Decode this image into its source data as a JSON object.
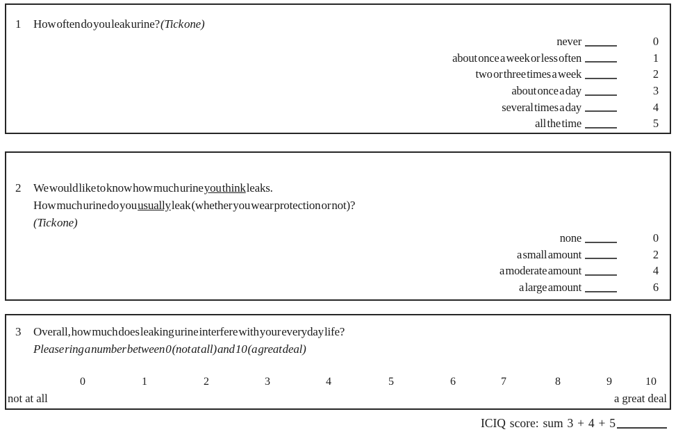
{
  "form": {
    "questions": [
      {
        "number": "1",
        "text": "How often do you leak urine?",
        "instruction": "(Tick one)",
        "options": [
          {
            "label": "never",
            "score": "0"
          },
          {
            "label": "about once a week or less often",
            "score": "1"
          },
          {
            "label": "two or three times a week",
            "score": "2"
          },
          {
            "label": "about once a day",
            "score": "3"
          },
          {
            "label": "several times a day",
            "score": "4"
          },
          {
            "label": "all the time",
            "score": "5"
          }
        ]
      },
      {
        "number": "2",
        "line1_pre": "We would like to know how much urine ",
        "line1_underlined": "you think",
        "line1_post": " leaks.",
        "line2_pre": "How much urine do you ",
        "line2_underlined": "usually",
        "line2_post": " leak (whether you wear protection or not)?",
        "instruction": "(Tick one)",
        "options": [
          {
            "label": "none",
            "score": "0"
          },
          {
            "label": "a small amount",
            "score": "2"
          },
          {
            "label": "a moderate amount",
            "score": "4"
          },
          {
            "label": "a large amount",
            "score": "6"
          }
        ]
      },
      {
        "number": "3",
        "text": "Overall, how much does leaking urine interfere with your everyday life?",
        "instruction": "Please ring a number between 0 (not at all) and 10 (a great deal)",
        "scale": {
          "values": [
            "0",
            "1",
            "2",
            "3",
            "4",
            "5",
            "6",
            "7",
            "8",
            "9",
            "10"
          ],
          "min_label": "not at all",
          "max_label": "a great deal"
        }
      }
    ],
    "footer": {
      "score_label": "ICIQ score: sum 3 + 4 + 5"
    }
  }
}
